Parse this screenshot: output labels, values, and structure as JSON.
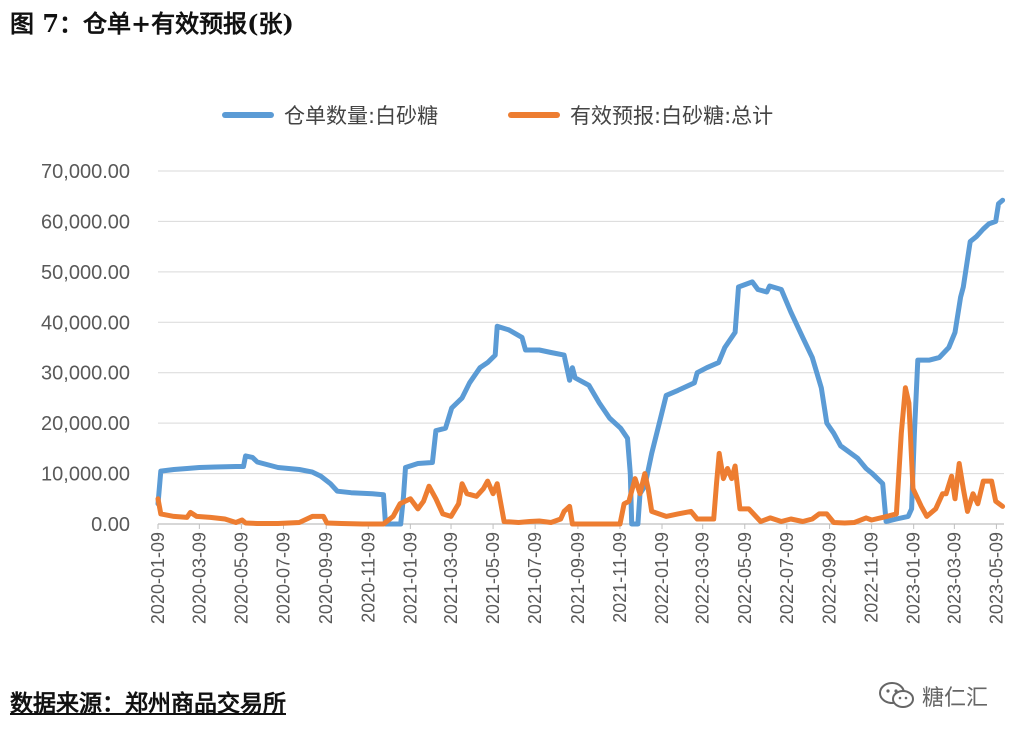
{
  "figure_title": "图 7：仓单+有效预报(张)",
  "source": "数据来源：郑州商品交易所",
  "watermark": {
    "icon": "wechat-icon",
    "text": "糖仁汇"
  },
  "colors": {
    "series1": "#5B9BD5",
    "series2": "#ED7D31",
    "grid": "#D9D9D9",
    "axis_text": "#595959"
  },
  "chart_data": {
    "type": "line",
    "title": "",
    "xlabel": "",
    "ylabel": "",
    "ylim": [
      0,
      70000
    ],
    "y_ticks": [
      "0.00",
      "10,000.00",
      "20,000.00",
      "30,000.00",
      "40,000.00",
      "50,000.00",
      "60,000.00",
      "70,000.00"
    ],
    "x_range": [
      "2020-01-09",
      "2023-05-20"
    ],
    "x_ticks": [
      "2020-01-09",
      "2020-03-09",
      "2020-05-09",
      "2020-07-09",
      "2020-09-09",
      "2020-11-09",
      "2021-01-09",
      "2021-03-09",
      "2021-05-09",
      "2021-07-09",
      "2021-09-09",
      "2021-11-09",
      "2022-01-09",
      "2022-03-09",
      "2022-05-09",
      "2022-07-09",
      "2022-09-09",
      "2022-11-09",
      "2023-01-09",
      "2023-03-09",
      "2023-05-09"
    ],
    "grid": true,
    "legend_position": "top",
    "series": [
      {
        "name": "仓单数量:白砂糖",
        "points": [
          [
            "2020-01-09",
            4000
          ],
          [
            "2020-01-13",
            10500
          ],
          [
            "2020-02-01",
            10800
          ],
          [
            "2020-02-20",
            11000
          ],
          [
            "2020-03-09",
            11200
          ],
          [
            "2020-04-01",
            11300
          ],
          [
            "2020-05-01",
            11400
          ],
          [
            "2020-05-12",
            11400
          ],
          [
            "2020-05-15",
            13500
          ],
          [
            "2020-05-25",
            13200
          ],
          [
            "2020-06-01",
            12300
          ],
          [
            "2020-07-01",
            11200
          ],
          [
            "2020-08-01",
            10800
          ],
          [
            "2020-08-20",
            10300
          ],
          [
            "2020-09-01",
            9500
          ],
          [
            "2020-09-15",
            8000
          ],
          [
            "2020-09-25",
            6500
          ],
          [
            "2020-10-15",
            6200
          ],
          [
            "2020-11-15",
            6000
          ],
          [
            "2020-12-01",
            5800
          ],
          [
            "2020-12-04",
            0
          ],
          [
            "2020-12-26",
            0
          ],
          [
            "2020-12-30",
            5500
          ],
          [
            "2021-01-02",
            11200
          ],
          [
            "2021-01-20",
            12000
          ],
          [
            "2021-02-10",
            12200
          ],
          [
            "2021-02-15",
            18500
          ],
          [
            "2021-03-01",
            19000
          ],
          [
            "2021-03-10",
            23000
          ],
          [
            "2021-03-25",
            25000
          ],
          [
            "2021-04-05",
            28000
          ],
          [
            "2021-04-20",
            31000
          ],
          [
            "2021-05-01",
            32000
          ],
          [
            "2021-05-12",
            33500
          ],
          [
            "2021-05-15",
            39200
          ],
          [
            "2021-06-01",
            38500
          ],
          [
            "2021-06-20",
            37000
          ],
          [
            "2021-06-25",
            34500
          ],
          [
            "2021-07-15",
            34500
          ],
          [
            "2021-08-01",
            34000
          ],
          [
            "2021-08-20",
            33500
          ],
          [
            "2021-08-28",
            28500
          ],
          [
            "2021-09-01",
            31000
          ],
          [
            "2021-09-05",
            29000
          ],
          [
            "2021-09-25",
            27500
          ],
          [
            "2021-10-10",
            24000
          ],
          [
            "2021-10-25",
            21000
          ],
          [
            "2021-11-10",
            19000
          ],
          [
            "2021-11-20",
            17000
          ],
          [
            "2021-11-24",
            10000
          ],
          [
            "2021-11-26",
            0
          ],
          [
            "2021-12-05",
            0
          ],
          [
            "2021-12-08",
            6000
          ],
          [
            "2021-12-15",
            7500
          ],
          [
            "2021-12-25",
            14000
          ],
          [
            "2022-01-05",
            20000
          ],
          [
            "2022-01-15",
            25500
          ],
          [
            "2022-02-01",
            26500
          ],
          [
            "2022-02-25",
            28000
          ],
          [
            "2022-03-01",
            30000
          ],
          [
            "2022-03-15",
            31000
          ],
          [
            "2022-04-01",
            32000
          ],
          [
            "2022-04-10",
            35000
          ],
          [
            "2022-04-25",
            38000
          ],
          [
            "2022-04-30",
            47000
          ],
          [
            "2022-05-20",
            48000
          ],
          [
            "2022-05-28",
            46500
          ],
          [
            "2022-06-10",
            46000
          ],
          [
            "2022-06-14",
            47200
          ],
          [
            "2022-07-01",
            46500
          ],
          [
            "2022-07-15",
            42000
          ],
          [
            "2022-08-01",
            37000
          ],
          [
            "2022-08-15",
            33000
          ],
          [
            "2022-08-28",
            27000
          ],
          [
            "2022-09-05",
            20000
          ],
          [
            "2022-09-15",
            18000
          ],
          [
            "2022-09-25",
            15500
          ],
          [
            "2022-10-20",
            13000
          ],
          [
            "2022-11-01",
            11000
          ],
          [
            "2022-11-10",
            10000
          ],
          [
            "2022-11-25",
            8000
          ],
          [
            "2022-11-30",
            500
          ],
          [
            "2022-12-15",
            1000
          ],
          [
            "2023-01-01",
            1500
          ],
          [
            "2023-01-06",
            3000
          ],
          [
            "2023-01-10",
            18000
          ],
          [
            "2023-01-15",
            32500
          ],
          [
            "2023-02-01",
            32500
          ],
          [
            "2023-02-15",
            33000
          ],
          [
            "2023-03-01",
            35000
          ],
          [
            "2023-03-10",
            38000
          ],
          [
            "2023-03-18",
            45000
          ],
          [
            "2023-03-22",
            47000
          ],
          [
            "2023-04-01",
            56000
          ],
          [
            "2023-04-10",
            57000
          ],
          [
            "2023-04-20",
            58500
          ],
          [
            "2023-04-28",
            59500
          ],
          [
            "2023-05-08",
            60000
          ],
          [
            "2023-05-12",
            63500
          ],
          [
            "2023-05-18",
            64200
          ]
        ]
      },
      {
        "name": "有效预报:白砂糖:总计",
        "points": [
          [
            "2020-01-09",
            5000
          ],
          [
            "2020-01-13",
            2000
          ],
          [
            "2020-02-01",
            1500
          ],
          [
            "2020-02-20",
            1300
          ],
          [
            "2020-02-25",
            2300
          ],
          [
            "2020-03-05",
            1500
          ],
          [
            "2020-03-25",
            1300
          ],
          [
            "2020-04-15",
            1000
          ],
          [
            "2020-05-01",
            300
          ],
          [
            "2020-05-10",
            800
          ],
          [
            "2020-05-15",
            200
          ],
          [
            "2020-06-01",
            100
          ],
          [
            "2020-07-01",
            100
          ],
          [
            "2020-08-01",
            300
          ],
          [
            "2020-08-20",
            1500
          ],
          [
            "2020-09-05",
            1500
          ],
          [
            "2020-09-10",
            200
          ],
          [
            "2020-10-01",
            100
          ],
          [
            "2020-11-01",
            0
          ],
          [
            "2020-12-01",
            0
          ],
          [
            "2020-12-15",
            1500
          ],
          [
            "2020-12-25",
            4000
          ],
          [
            "2021-01-09",
            5000
          ],
          [
            "2021-01-20",
            3000
          ],
          [
            "2021-01-28",
            4500
          ],
          [
            "2021-02-05",
            7500
          ],
          [
            "2021-02-15",
            5000
          ],
          [
            "2021-02-25",
            2000
          ],
          [
            "2021-03-09",
            1500
          ],
          [
            "2021-03-20",
            4000
          ],
          [
            "2021-03-25",
            8000
          ],
          [
            "2021-04-01",
            6000
          ],
          [
            "2021-04-15",
            5500
          ],
          [
            "2021-04-25",
            7000
          ],
          [
            "2021-05-01",
            8500
          ],
          [
            "2021-05-09",
            6000
          ],
          [
            "2021-05-15",
            8000
          ],
          [
            "2021-05-25",
            500
          ],
          [
            "2021-06-15",
            300
          ],
          [
            "2021-07-01",
            500
          ],
          [
            "2021-07-15",
            600
          ],
          [
            "2021-08-01",
            300
          ],
          [
            "2021-08-15",
            1000
          ],
          [
            "2021-08-20",
            2500
          ],
          [
            "2021-08-28",
            3500
          ],
          [
            "2021-09-01",
            0
          ],
          [
            "2021-10-01",
            0
          ],
          [
            "2021-11-09",
            0
          ],
          [
            "2021-11-15",
            4000
          ],
          [
            "2021-11-22",
            4500
          ],
          [
            "2021-12-01",
            9000
          ],
          [
            "2021-12-08",
            6000
          ],
          [
            "2021-12-15",
            10000
          ],
          [
            "2021-12-20",
            7000
          ],
          [
            "2021-12-25",
            2500
          ],
          [
            "2022-01-15",
            1500
          ],
          [
            "2022-02-01",
            2000
          ],
          [
            "2022-02-20",
            2500
          ],
          [
            "2022-03-01",
            1000
          ],
          [
            "2022-03-25",
            1000
          ],
          [
            "2022-03-29",
            8000
          ],
          [
            "2022-04-02",
            14000
          ],
          [
            "2022-04-08",
            9000
          ],
          [
            "2022-04-14",
            11000
          ],
          [
            "2022-04-20",
            9000
          ],
          [
            "2022-04-25",
            11500
          ],
          [
            "2022-05-02",
            3000
          ],
          [
            "2022-05-15",
            3000
          ],
          [
            "2022-06-01",
            500
          ],
          [
            "2022-06-15",
            1200
          ],
          [
            "2022-07-01",
            500
          ],
          [
            "2022-07-15",
            1000
          ],
          [
            "2022-08-01",
            500
          ],
          [
            "2022-08-15",
            1000
          ],
          [
            "2022-08-25",
            2000
          ],
          [
            "2022-09-05",
            2000
          ],
          [
            "2022-09-15",
            300
          ],
          [
            "2022-10-01",
            200
          ],
          [
            "2022-10-15",
            300
          ],
          [
            "2022-11-01",
            1200
          ],
          [
            "2022-11-09",
            800
          ],
          [
            "2022-12-01",
            1500
          ],
          [
            "2022-12-15",
            2000
          ],
          [
            "2022-12-22",
            18000
          ],
          [
            "2022-12-28",
            27000
          ],
          [
            "2023-01-02",
            24000
          ],
          [
            "2023-01-08",
            7000
          ],
          [
            "2023-01-20",
            3500
          ],
          [
            "2023-01-28",
            1500
          ],
          [
            "2023-02-10",
            3000
          ],
          [
            "2023-02-20",
            6000
          ],
          [
            "2023-02-25",
            6000
          ],
          [
            "2023-03-05",
            9500
          ],
          [
            "2023-03-10",
            5000
          ],
          [
            "2023-03-16",
            12000
          ],
          [
            "2023-03-22",
            7000
          ],
          [
            "2023-03-28",
            2500
          ],
          [
            "2023-04-05",
            6000
          ],
          [
            "2023-04-12",
            4000
          ],
          [
            "2023-04-20",
            8500
          ],
          [
            "2023-05-02",
            8500
          ],
          [
            "2023-05-08",
            4500
          ],
          [
            "2023-05-18",
            3500
          ]
        ]
      }
    ]
  }
}
